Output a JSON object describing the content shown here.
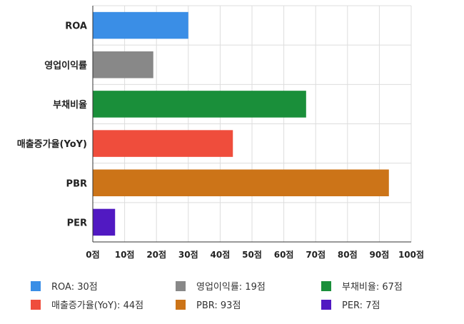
{
  "chart_data": {
    "type": "bar",
    "orientation": "horizontal",
    "categories": [
      "ROA",
      "영업이익률",
      "부채비율",
      "매출증가율(YoY)",
      "PBR",
      "PER"
    ],
    "values": [
      30,
      19,
      67,
      44,
      93,
      7
    ],
    "colors": [
      "#3a8ee6",
      "#888888",
      "#1a8f3a",
      "#ef4d3c",
      "#cc7418",
      "#5119c2"
    ],
    "xlim": [
      0,
      100
    ],
    "xticks": [
      "0점",
      "10점",
      "20점",
      "30점",
      "40점",
      "50점",
      "60점",
      "70점",
      "80점",
      "90점",
      "100점"
    ],
    "grid": true,
    "legend_position": "bottom",
    "legend": [
      "ROA: 30점",
      "영업이익률: 19점",
      "부채비율: 67점",
      "매출증가율(YoY): 44점",
      "PBR: 93점",
      "PER: 7점"
    ]
  }
}
